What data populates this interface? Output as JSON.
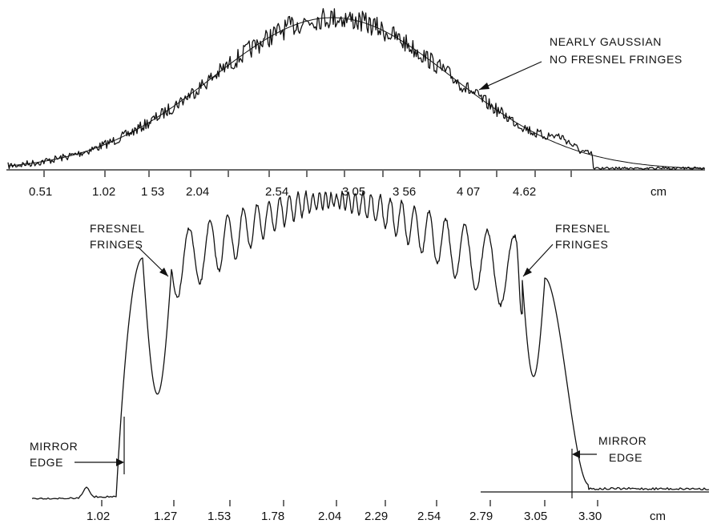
{
  "chart_data": [
    {
      "type": "line",
      "name": "top-panel",
      "x_unit_label": "cm",
      "x_ticks": [
        "0.51",
        "1.02",
        "1 53",
        "2.04",
        "2.54",
        "3 05",
        "3 56",
        "4 07",
        "4.62"
      ],
      "x_unit": "cm",
      "annotations": [
        {
          "text": [
            "NEARLY GAUSSIAN",
            "NO FRESNEL FRINGES"
          ]
        }
      ],
      "grid": false
    },
    {
      "type": "line",
      "name": "bottom-panel",
      "x_ticks": [
        "1.02",
        "1.27",
        "1.53",
        "1.78",
        "2.04",
        "2.29",
        "2.54",
        "2.79",
        "3.05",
        "3.30"
      ],
      "x_unit": "cm",
      "annotations": [
        {
          "text": [
            "FRESNEL",
            "FRINGES"
          ],
          "side": "left"
        },
        {
          "text": [
            "FRESNEL",
            "FRINGES"
          ],
          "side": "right"
        },
        {
          "text": [
            "MIRROR",
            "EDGE"
          ],
          "side": "left"
        },
        {
          "text": [
            "MIRROR",
            "EDGE"
          ],
          "side": "right"
        }
      ],
      "grid": false
    }
  ]
}
